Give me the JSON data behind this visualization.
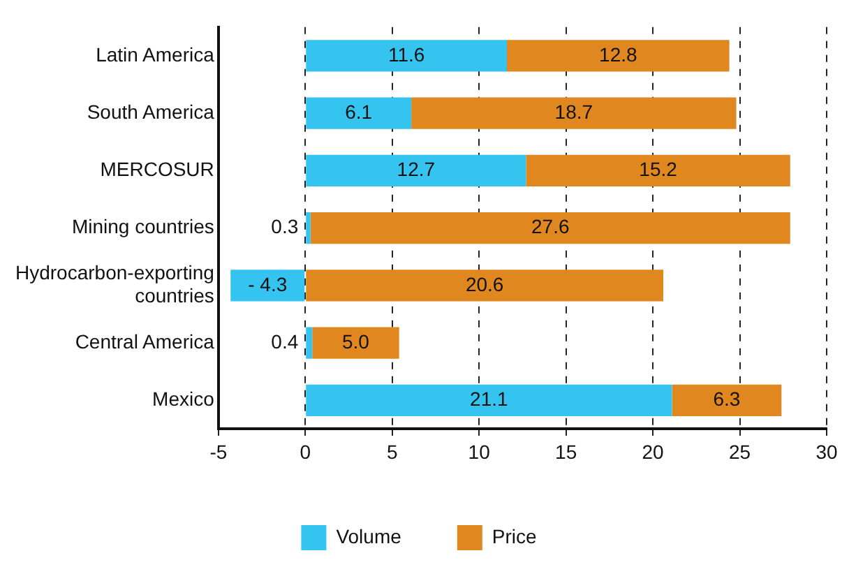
{
  "chart_data": {
    "type": "bar",
    "orientation": "horizontal",
    "stacked": true,
    "categories": [
      "Latin America",
      "South America",
      "MERCOSUR",
      "Mining countries",
      "Hydrocarbon-exporting countries",
      "Central America",
      "Mexico"
    ],
    "series": [
      {
        "name": "Volume",
        "color": "#35c4f0",
        "values": [
          11.6,
          6.1,
          12.7,
          0.3,
          -4.3,
          0.4,
          21.1
        ],
        "value_labels": [
          "11.6",
          "6.1",
          "12.7",
          "0.3",
          "- 4.3",
          "0.4",
          "21.1"
        ]
      },
      {
        "name": "Price",
        "color": "#e0881f",
        "values": [
          12.8,
          18.7,
          15.2,
          27.6,
          20.6,
          5.0,
          6.3
        ],
        "value_labels": [
          "12.8",
          "18.7",
          "15.2",
          "27.6",
          "20.6",
          "5.0",
          "6.3"
        ]
      }
    ],
    "xlim": [
      -5,
      30
    ],
    "xticks": [
      -5,
      0,
      5,
      10,
      15,
      20,
      25,
      30
    ],
    "grid": "x",
    "legend": "bottom"
  }
}
